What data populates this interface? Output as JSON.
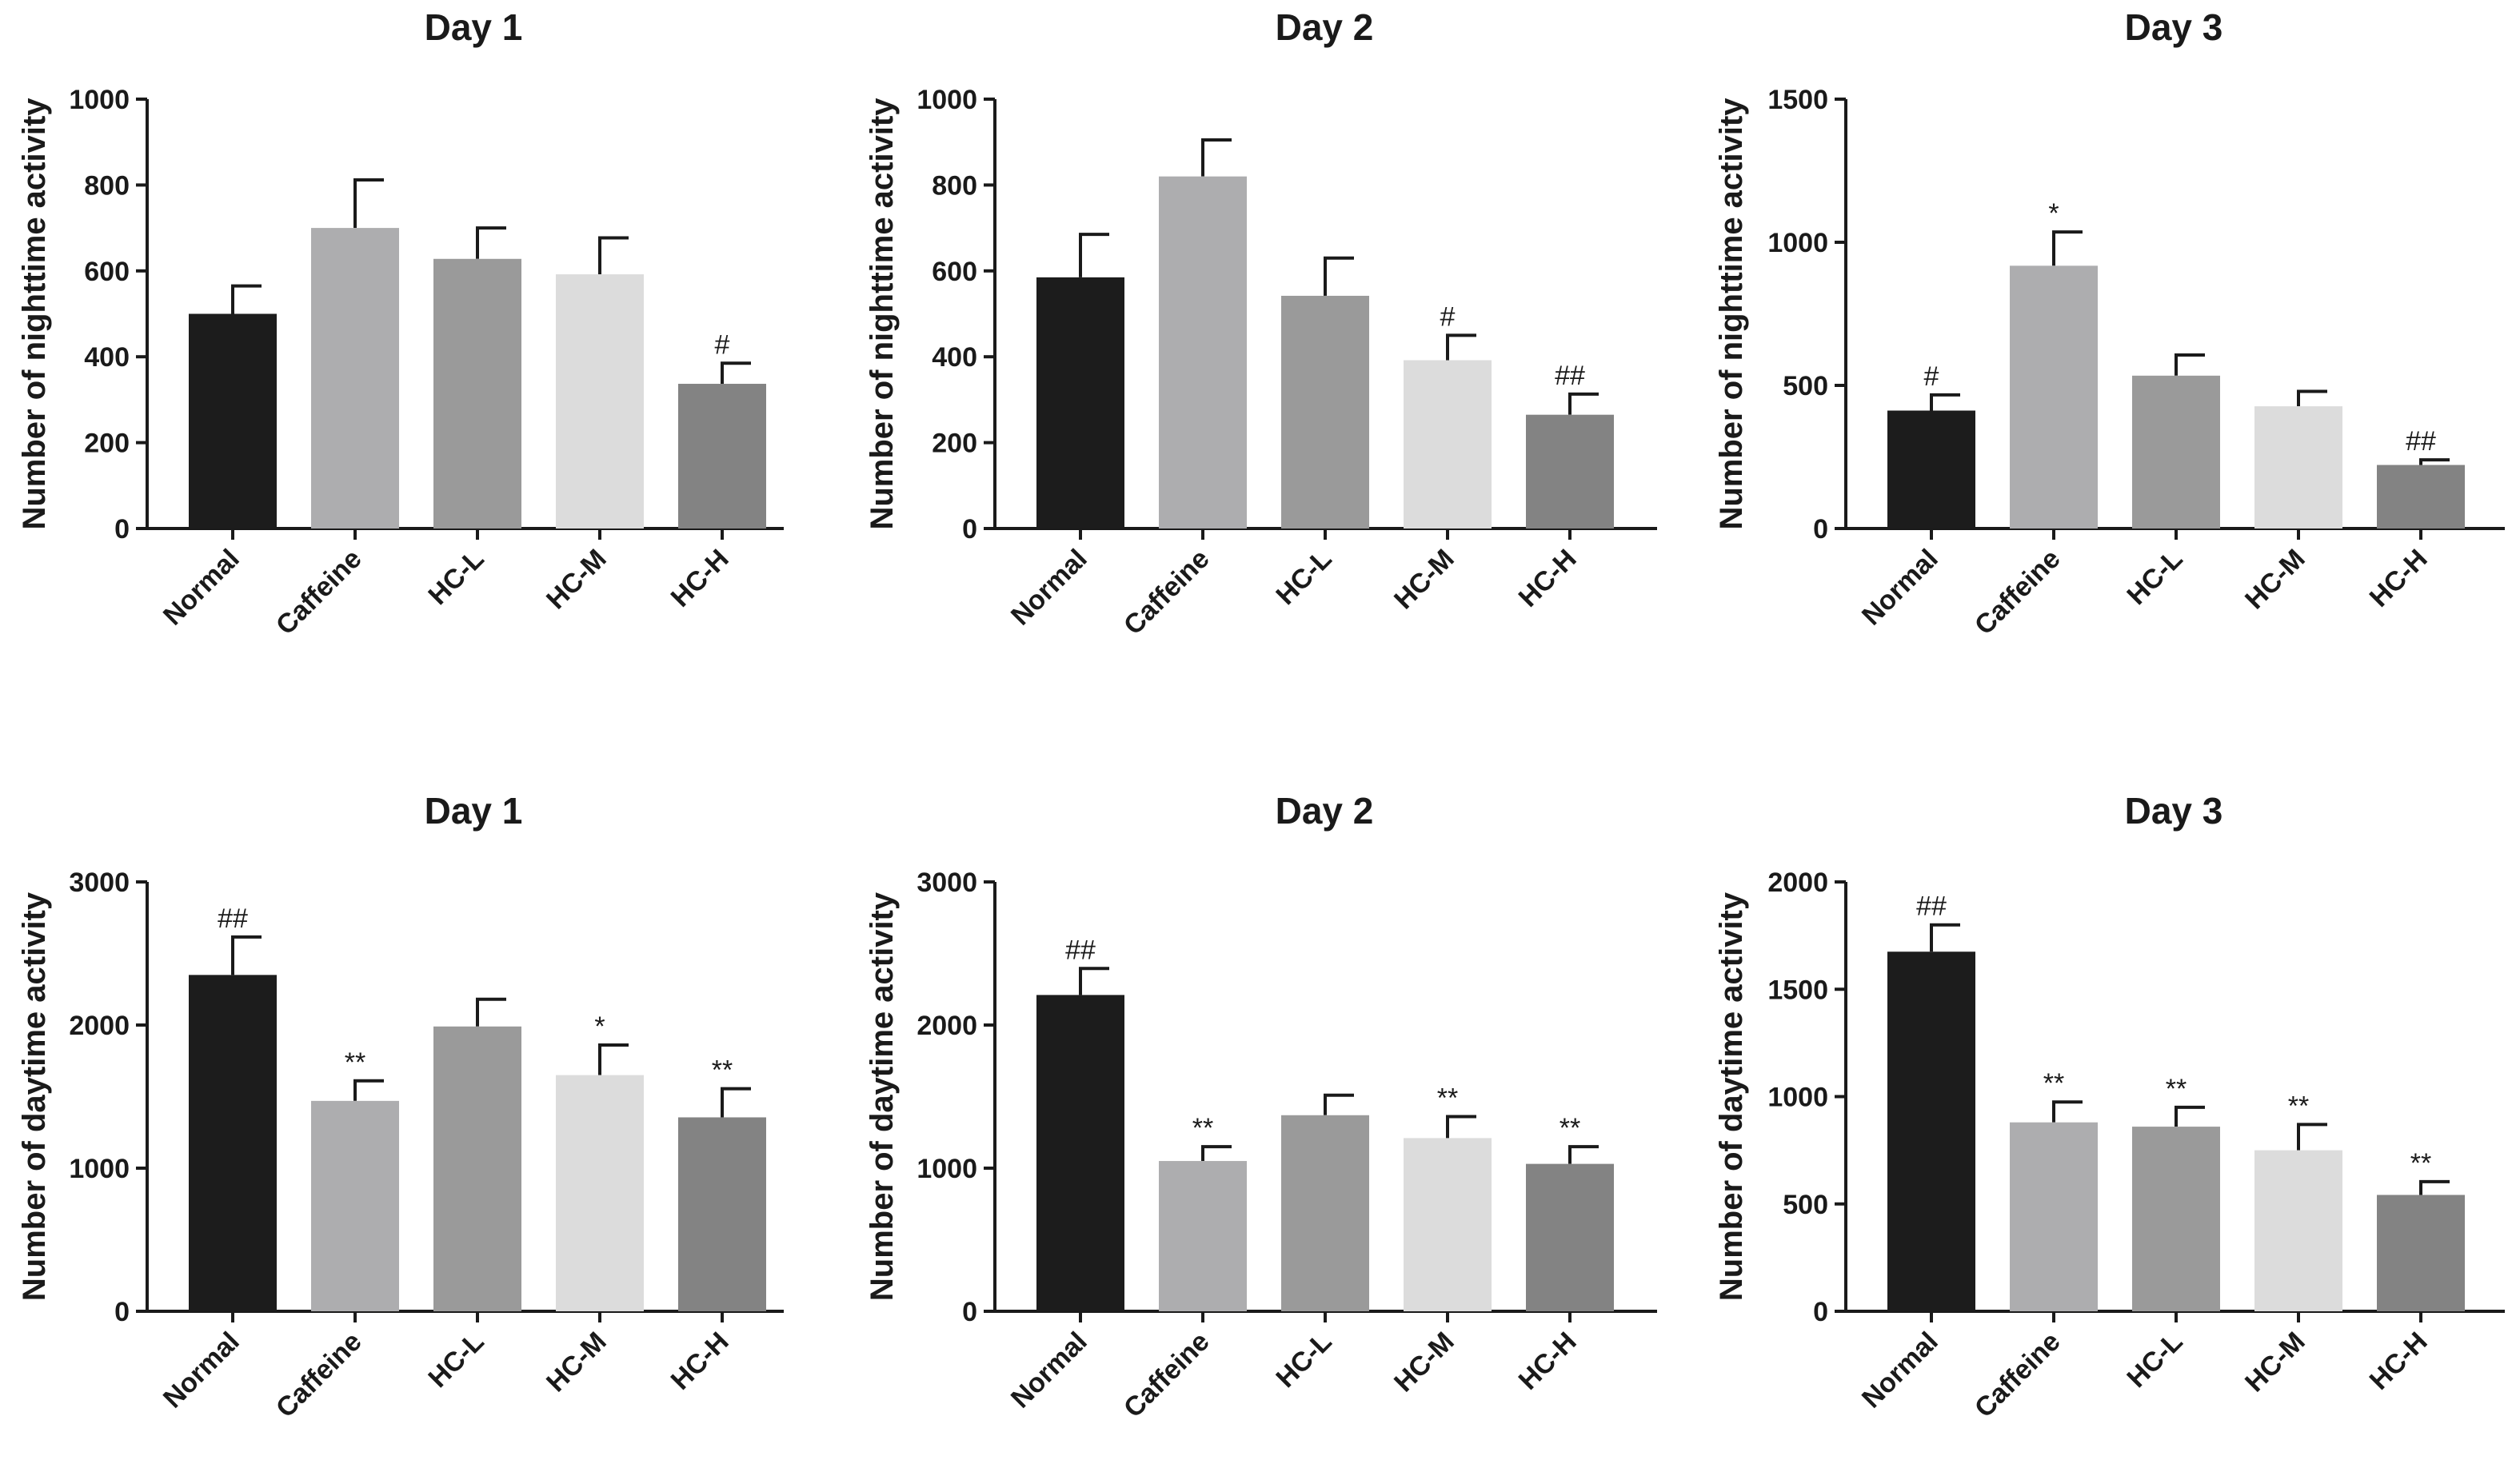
{
  "chart_data": [
    {
      "type": "bar",
      "title": "Day 1",
      "xlabel": "",
      "ylabel": "Number of nighttime activity",
      "categories": [
        "Normal",
        "Caffeine",
        "HC-L",
        "HC-M",
        "HC-H"
      ],
      "values": [
        500,
        700,
        628,
        592,
        337
      ],
      "errors": [
        65,
        112,
        72,
        85,
        48
      ],
      "annotations": [
        "",
        "",
        "",
        "",
        "#"
      ],
      "ylim": [
        0,
        1000
      ],
      "yticks": [
        "0",
        "200",
        "400",
        "600",
        "800",
        "1000"
      ],
      "colors": [
        "#1c1c1c",
        "#adadaf",
        "#9a9a9a",
        "#dcdcdc",
        "#838383"
      ]
    },
    {
      "type": "bar",
      "title": "Day 2",
      "xlabel": "",
      "ylabel": "Number of nighttime activity",
      "categories": [
        "Normal",
        "Caffeine",
        "HC-L",
        "HC-M",
        "HC-H"
      ],
      "values": [
        585,
        820,
        542,
        392,
        265
      ],
      "errors": [
        100,
        85,
        88,
        58,
        48
      ],
      "annotations": [
        "",
        "",
        "",
        "#",
        "##"
      ],
      "ylim": [
        0,
        1000
      ],
      "yticks": [
        "0",
        "200",
        "400",
        "600",
        "800",
        "1000"
      ],
      "colors": [
        "#1c1c1c",
        "#adadaf",
        "#9a9a9a",
        "#dcdcdc",
        "#838383"
      ]
    },
    {
      "type": "bar",
      "title": "Day 3",
      "xlabel": "",
      "ylabel": "Number of nighttime activity",
      "categories": [
        "Normal",
        "Caffeine",
        "HC-L",
        "HC-M",
        "HC-H"
      ],
      "values": [
        412,
        918,
        534,
        427,
        222
      ],
      "errors": [
        55,
        118,
        72,
        52,
        18
      ],
      "annotations": [
        "#",
        "*",
        "",
        "",
        "##"
      ],
      "ylim": [
        0,
        1500
      ],
      "yticks": [
        "0",
        "500",
        "1000",
        "1500"
      ],
      "colors": [
        "#1c1c1c",
        "#adadaf",
        "#9a9a9a",
        "#dcdcdc",
        "#838383"
      ]
    },
    {
      "type": "bar",
      "title": "Day 1",
      "xlabel": "",
      "ylabel": "Number of daytime activity",
      "categories": [
        "Normal",
        "Caffeine",
        "HC-L",
        "HC-M",
        "HC-H"
      ],
      "values": [
        2350,
        1470,
        1990,
        1650,
        1355
      ],
      "errors": [
        265,
        140,
        190,
        210,
        200
      ],
      "annotations": [
        "##",
        "**",
        "",
        "*",
        "**"
      ],
      "ylim": [
        0,
        3000
      ],
      "yticks": [
        "0",
        "1000",
        "2000",
        "3000"
      ],
      "colors": [
        "#1c1c1c",
        "#adadaf",
        "#9a9a9a",
        "#dcdcdc",
        "#838383"
      ]
    },
    {
      "type": "bar",
      "title": "Day 2",
      "xlabel": "",
      "ylabel": "Number of daytime activity",
      "categories": [
        "Normal",
        "Caffeine",
        "HC-L",
        "HC-M",
        "HC-H"
      ],
      "values": [
        2210,
        1050,
        1370,
        1210,
        1030
      ],
      "errors": [
        185,
        100,
        140,
        150,
        120
      ],
      "annotations": [
        "##",
        "**",
        "",
        "**",
        "**"
      ],
      "ylim": [
        0,
        3000
      ],
      "yticks": [
        "0",
        "1000",
        "2000",
        "3000"
      ],
      "colors": [
        "#1c1c1c",
        "#adadaf",
        "#9a9a9a",
        "#dcdcdc",
        "#838383"
      ]
    },
    {
      "type": "bar",
      "title": "Day 3",
      "xlabel": "",
      "ylabel": "Number of daytime activity",
      "categories": [
        "Normal",
        "Caffeine",
        "HC-L",
        "HC-M",
        "HC-H"
      ],
      "values": [
        1675,
        880,
        860,
        750,
        542
      ],
      "errors": [
        125,
        95,
        90,
        120,
        62
      ],
      "annotations": [
        "##",
        "**",
        "**",
        "**",
        "**"
      ],
      "ylim": [
        0,
        2000
      ],
      "yticks": [
        "0",
        "500",
        "1000",
        "1500",
        "2000"
      ],
      "colors": [
        "#1c1c1c",
        "#adadaf",
        "#9a9a9a",
        "#dcdcdc",
        "#838383"
      ]
    }
  ]
}
